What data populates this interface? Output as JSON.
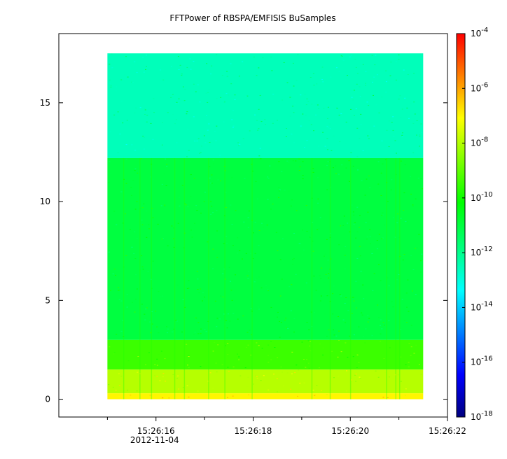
{
  "chart_data": {
    "type": "heatmap",
    "title": "FFTPower of RBSPA/EMFISIS  BuSamples",
    "x": {
      "tick_labels": [
        "15:26:16",
        "15:26:18",
        "15:26:20",
        "15:26:22"
      ],
      "tick_values_s": [
        16,
        18,
        20,
        22
      ],
      "minor_tick_values_s": [
        15,
        17,
        19,
        21
      ],
      "range_s": [
        14.0,
        22.0
      ],
      "date_label": "2012-11-04",
      "label": ""
    },
    "y": {
      "tick_labels": [
        "0",
        "5",
        "10",
        "15"
      ],
      "tick_values": [
        0,
        5,
        10,
        15
      ],
      "range": [
        -0.9,
        18.5
      ],
      "label": ""
    },
    "data_extent": {
      "x_start_s": 15.0,
      "x_end_s": 21.5,
      "y_min": 0,
      "y_max": 17.5
    },
    "colorbar": {
      "scale": "log",
      "range": [
        1e-18,
        0.0001
      ],
      "tick_labels": [
        {
          "base": "10",
          "exp": "-4",
          "value": 0.0001
        },
        {
          "base": "10",
          "exp": "-6",
          "value": 1e-06
        },
        {
          "base": "10",
          "exp": "-8",
          "value": 1e-08
        },
        {
          "base": "10",
          "exp": "-10",
          "value": 1e-10
        },
        {
          "base": "10",
          "exp": "-12",
          "value": 1e-12
        },
        {
          "base": "10",
          "exp": "-14",
          "value": 1e-14
        },
        {
          "base": "10",
          "exp": "-16",
          "value": 1e-16
        },
        {
          "base": "10",
          "exp": "-18",
          "value": 1e-18
        }
      ],
      "colors": [
        "#00007f",
        "#0000ff",
        "#007fff",
        "#00ffff",
        "#00ff7f",
        "#00ff00",
        "#7fff00",
        "#ffff00",
        "#ff7f00",
        "#ff0000"
      ]
    },
    "bands": [
      {
        "y_from": 12.2,
        "y_to": 17.5,
        "log_power": -12.5
      },
      {
        "y_from": 3.0,
        "y_to": 12.2,
        "log_power": -11.0
      },
      {
        "y_from": 1.5,
        "y_to": 3.0,
        "log_power": -9.5
      },
      {
        "y_from": 0.3,
        "y_to": 1.5,
        "log_power": -8.0
      },
      {
        "y_from": 0.0,
        "y_to": 0.3,
        "log_power": -7.0
      }
    ],
    "grid": false,
    "legend": "colorbar-right"
  }
}
